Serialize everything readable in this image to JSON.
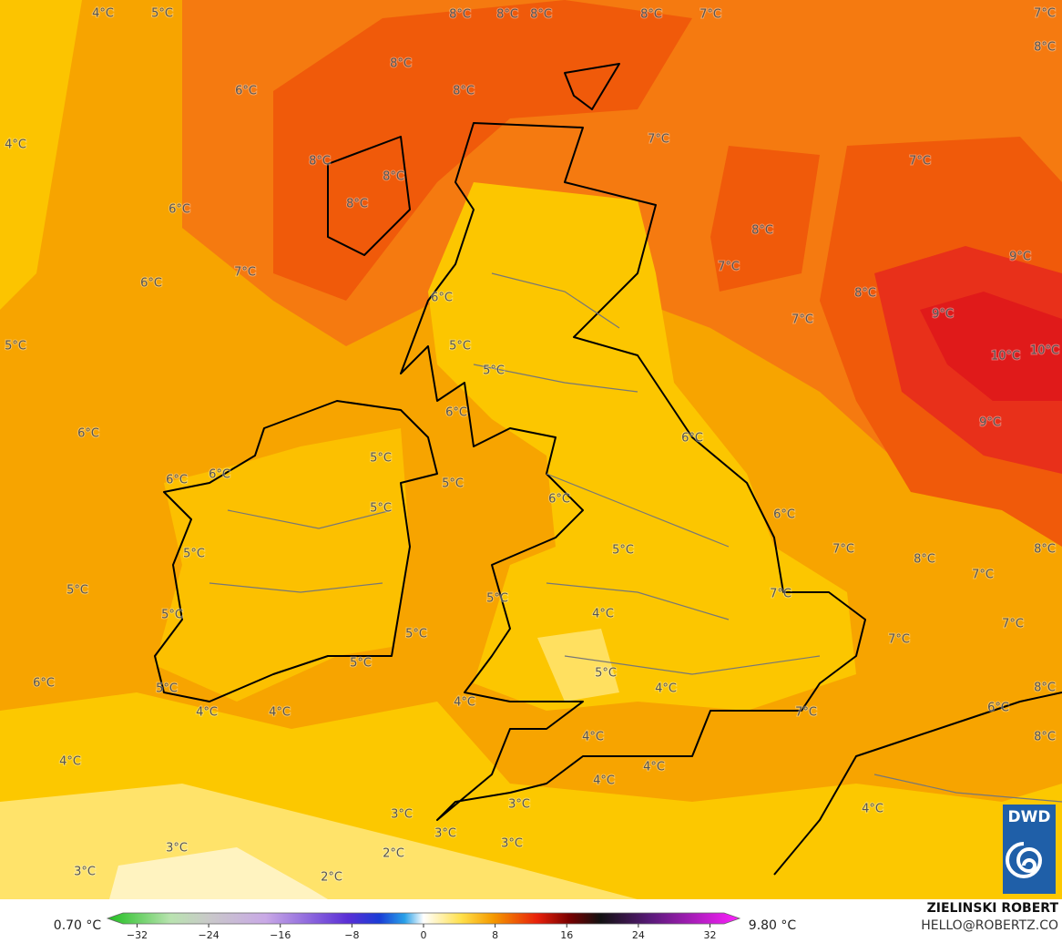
{
  "map": {
    "labels": [
      "4°C",
      "5°C",
      "8°C",
      "8°C",
      "8°C",
      "8°C",
      "7°C",
      "7°C",
      "8°C",
      "8°C",
      "8°C",
      "6°C",
      "4°C",
      "7°C",
      "8°C",
      "8°C",
      "7°C",
      "6°C",
      "8°C",
      "8°C",
      "7°C",
      "6°C",
      "7°C",
      "9°C",
      "8°C",
      "6°C",
      "7°C",
      "9°C",
      "5°C",
      "5°C",
      "10°C",
      "10°C",
      "5°C",
      "6°C",
      "9°C",
      "6°C",
      "6°C",
      "5°C",
      "6°C",
      "6°C",
      "5°C",
      "6°C",
      "5°C",
      "6°C",
      "5°C",
      "7°C",
      "5°C",
      "8°C",
      "8°C",
      "7°C",
      "5°C",
      "5°C",
      "7°C",
      "4°C",
      "5°C",
      "7°C",
      "5°C",
      "7°C",
      "5°C",
      "5°C",
      "6°C",
      "4°C",
      "8°C",
      "5°C",
      "6°C",
      "4°C",
      "7°C",
      "4°C",
      "4°C",
      "4°C",
      "8°C",
      "4°C",
      "4°C",
      "4°C",
      "3°C",
      "4°C",
      "3°C",
      "3°C",
      "3°C",
      "3°C",
      "2°C",
      "3°C",
      "2°C"
    ],
    "logo": "DWD"
  },
  "legend": {
    "min_label": "0.70 °C",
    "max_label": "9.80 °C",
    "xlim": [
      -35,
      35
    ],
    "ticks": [
      {
        "value": -32,
        "label": "−32"
      },
      {
        "value": -24,
        "label": "−24"
      },
      {
        "value": -16,
        "label": "−16"
      },
      {
        "value": -8,
        "label": "−8"
      },
      0,
      8,
      16,
      24,
      32
    ]
  },
  "credit": {
    "name": "ZIELINSKI ROBERT",
    "email": "HELLO@ROBERTZ.CO"
  }
}
